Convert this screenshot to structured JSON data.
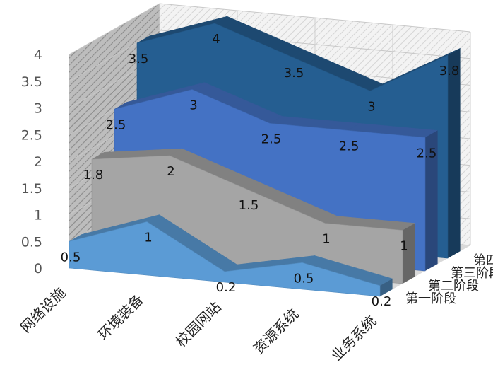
{
  "chart_data": {
    "type": "area",
    "variant": "3d-area",
    "title": "",
    "xlabel": "",
    "ylabel": "",
    "categories": [
      "网络设施",
      "环境装备",
      "校园网站",
      "资源系统",
      "业务系统"
    ],
    "ylim": [
      0,
      4
    ],
    "yticks": [
      "0",
      "0.5",
      "1",
      "1.5",
      "2",
      "2.5",
      "3",
      "3.5",
      "4"
    ],
    "grid": true,
    "legend": "none",
    "series": [
      {
        "name": "第一阶段",
        "values": [
          0.5,
          1,
          0.2,
          0.5,
          0.2
        ],
        "labels": [
          "0.5",
          "1",
          "0.2",
          "0.5",
          "0.2"
        ],
        "color": "#5b9bd5"
      },
      {
        "name": "第二阶段",
        "values": [
          1.8,
          2,
          1.5,
          1,
          1
        ],
        "labels": [
          "1.8",
          "2",
          "1.5",
          "1",
          "1"
        ],
        "color": "#a5a5a5"
      },
      {
        "name": "第三阶段",
        "values": [
          2.5,
          3,
          2.5,
          2.5,
          2.5
        ],
        "labels": [
          "2.5",
          "3",
          "2.5",
          "2.5",
          "2.5"
        ],
        "color": "#4472c4"
      },
      {
        "name": "第四阶段",
        "values": [
          3.5,
          4,
          3.5,
          3,
          3.8
        ],
        "labels": [
          "3.5",
          "4",
          "3.5",
          "3",
          "3.8"
        ],
        "color": "#255e91"
      }
    ]
  }
}
